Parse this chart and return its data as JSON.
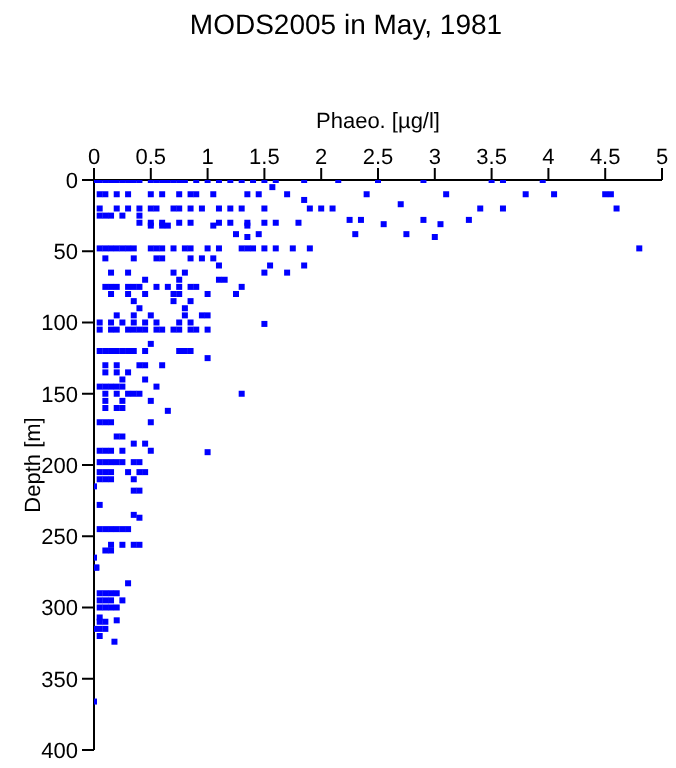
{
  "chart_data": {
    "type": "scatter",
    "title": "MODS2005 in May, 1981",
    "xlabel": "Phaeo. [µg/l]",
    "ylabel": "Depth [m]",
    "marker": "square",
    "xlim": [
      0,
      5
    ],
    "xticks": [
      0,
      0.5,
      1,
      1.5,
      2,
      2.5,
      3,
      3.5,
      4,
      4.5,
      5
    ],
    "ylim": [
      400,
      0
    ],
    "yticks": [
      0,
      50,
      100,
      150,
      200,
      250,
      300,
      350,
      400
    ],
    "series": [
      {
        "color": "#0000ff",
        "x": [
          0,
          0.05,
          0.1,
          0.15,
          0.2,
          0.25,
          0.3,
          0.35,
          0.4,
          0.5,
          0.55,
          0.6,
          0.65,
          0.7,
          0.75,
          0.8,
          0.9,
          1.0,
          1.1,
          1.2,
          1.3,
          1.4,
          1.5,
          1.6,
          1.85,
          2.15,
          2.5,
          2.9,
          3.5,
          3.6,
          3.95,
          0.05,
          0.1,
          0.2,
          0.3,
          0.5,
          0.6,
          0.75,
          0.85,
          0.9,
          1.05,
          1.35,
          1.45,
          1.7,
          2.4,
          3.1,
          3.8,
          4.05,
          4.5,
          4.55,
          1.57,
          1.85,
          0.05,
          0.2,
          0.3,
          0.4,
          0.5,
          0.55,
          0.7,
          0.75,
          0.85,
          0.95,
          1.1,
          1.2,
          1.3,
          1.5,
          1.9,
          2.0,
          2.1,
          2.7,
          3.4,
          3.6,
          4.6,
          0.05,
          0.1,
          0.15,
          0.25,
          0.4,
          0.4,
          0.5,
          0.6,
          0.75,
          0.85,
          1.1,
          1.2,
          1.35,
          1.5,
          1.6,
          1.8,
          2.25,
          2.35,
          2.55,
          2.9,
          3.05,
          3.3,
          0.5,
          0.6,
          0.65,
          1.05,
          1.35,
          1.45,
          2.3,
          2.75,
          3.0,
          1.25,
          1.35,
          0.05,
          0.1,
          0.15,
          0.2,
          0.25,
          0.3,
          0.35,
          0.5,
          0.55,
          0.6,
          0.7,
          0.8,
          0.85,
          1.0,
          1.1,
          1.3,
          1.35,
          1.4,
          1.5,
          1.6,
          1.75,
          1.9,
          4.8,
          0.1,
          0.35,
          0.55,
          0.6,
          0.85,
          0.95,
          1.05,
          1.1,
          1.55,
          1.85,
          0.15,
          0.3,
          0.7,
          0.8,
          1.5,
          1.7,
          0.45,
          0.75,
          1.1,
          1.15,
          0.1,
          0.15,
          0.2,
          0.3,
          0.35,
          0.4,
          0.55,
          0.65,
          0.75,
          0.85,
          0.9,
          1.3,
          0.15,
          0.3,
          0.45,
          0.7,
          0.75,
          1.0,
          1.25,
          0.35,
          0.7,
          0.85,
          0.4,
          0.8,
          0.2,
          0.35,
          0.5,
          0.8,
          0.95,
          1.0,
          0.05,
          0.15,
          0.25,
          0.35,
          0.45,
          0.55,
          0.75,
          0.85,
          1.5,
          0.05,
          0.15,
          0.2,
          0.3,
          0.35,
          0.4,
          0.45,
          0.55,
          0.6,
          0.7,
          0.75,
          0.85,
          0.9,
          1.0,
          0.5,
          0.05,
          0.1,
          0.15,
          0.2,
          0.25,
          0.3,
          0.35,
          0.45,
          0.75,
          0.8,
          0.85,
          1.0,
          0.1,
          0.2,
          0.4,
          0.45,
          0.6,
          0.1,
          0.2,
          0.3,
          0.25,
          0.45,
          0.05,
          0.1,
          0.15,
          0.2,
          0.25,
          0.55,
          0.1,
          0.2,
          0.3,
          0.35,
          0.4,
          1.3,
          0.1,
          0.25,
          0.5,
          0.1,
          0.2,
          0.25,
          0.65,
          0.05,
          0.1,
          0.15,
          0.5,
          0.2,
          0.25,
          0.35,
          0.45,
          0.05,
          0.1,
          0.15,
          0.25,
          0.5,
          1.0,
          0.05,
          0.1,
          0.15,
          0.2,
          0.25,
          0.35,
          0.4,
          0.05,
          0.1,
          0.15,
          0.3,
          0.4,
          0.45,
          0.05,
          0.1,
          0.15,
          0.35,
          0,
          0.35,
          0.4,
          0.05,
          0.35,
          0.4,
          0.05,
          0.1,
          0.15,
          0.2,
          0.25,
          0.3,
          0.15,
          0.25,
          0.35,
          0.4,
          0.1,
          0.15,
          0,
          0.02,
          0.02,
          0.3,
          0.05,
          0.1,
          0.15,
          0.2,
          0.05,
          0.1,
          0.15,
          0.25,
          0.05,
          0.1,
          0.15,
          0.2,
          0.05,
          0.05,
          0.1,
          0.2,
          0,
          0.05,
          0.1,
          0.05,
          0.18,
          0
        ],
        "values": [
          0,
          0,
          0,
          0,
          0,
          0,
          0,
          0,
          0,
          0,
          0,
          0,
          0,
          0,
          0,
          0,
          0,
          0,
          0,
          0,
          0,
          0,
          0,
          0,
          0,
          0,
          0,
          0,
          0,
          0,
          0,
          10,
          10,
          10,
          10,
          10,
          10,
          10,
          10,
          10,
          10,
          10,
          10,
          10,
          10,
          10,
          10,
          10,
          10,
          10,
          5,
          14,
          20,
          20,
          20,
          20,
          20,
          20,
          20,
          20,
          20,
          20,
          20,
          20,
          20,
          20,
          20,
          20,
          20,
          17,
          20,
          20,
          20,
          25,
          25,
          25,
          25,
          25,
          30,
          30,
          30,
          30,
          30,
          30,
          30,
          30,
          30,
          30,
          30,
          28,
          28,
          31,
          28,
          31,
          28,
          32,
          32,
          32,
          32,
          32,
          38,
          38,
          38,
          40,
          38,
          40,
          48,
          48,
          48,
          48,
          48,
          48,
          48,
          48,
          48,
          48,
          48,
          48,
          48,
          48,
          48,
          48,
          48,
          48,
          48,
          48,
          48,
          48,
          48,
          55,
          55,
          55,
          55,
          55,
          55,
          55,
          60,
          60,
          60,
          65,
          65,
          65,
          65,
          65,
          65,
          70,
          70,
          70,
          70,
          75,
          75,
          75,
          75,
          75,
          75,
          75,
          75,
          75,
          75,
          75,
          75,
          80,
          80,
          80,
          80,
          80,
          80,
          80,
          85,
          85,
          85,
          90,
          90,
          95,
          95,
          95,
          95,
          95,
          95,
          100,
          100,
          100,
          100,
          100,
          100,
          100,
          100,
          101,
          105,
          105,
          105,
          105,
          105,
          105,
          105,
          105,
          105,
          105,
          105,
          105,
          105,
          105,
          115,
          120,
          120,
          120,
          120,
          120,
          120,
          120,
          120,
          120,
          120,
          120,
          125,
          130,
          130,
          130,
          130,
          130,
          135,
          135,
          135,
          140,
          140,
          145,
          145,
          145,
          145,
          145,
          145,
          150,
          150,
          150,
          150,
          150,
          150,
          155,
          155,
          155,
          160,
          160,
          160,
          162,
          170,
          170,
          170,
          170,
          180,
          180,
          185,
          185,
          190,
          190,
          190,
          190,
          190,
          191,
          198,
          198,
          198,
          198,
          198,
          198,
          198,
          205,
          205,
          205,
          205,
          205,
          205,
          210,
          210,
          210,
          210,
          215,
          218,
          218,
          228,
          235,
          237,
          245,
          245,
          245,
          245,
          245,
          245,
          256,
          256,
          256,
          256,
          260,
          260,
          265,
          272,
          272,
          283,
          290,
          290,
          290,
          290,
          295,
          295,
          295,
          295,
          300,
          300,
          300,
          300,
          307,
          310,
          310,
          309,
          315,
          315,
          315,
          320,
          324,
          366
        ]
      }
    ]
  }
}
